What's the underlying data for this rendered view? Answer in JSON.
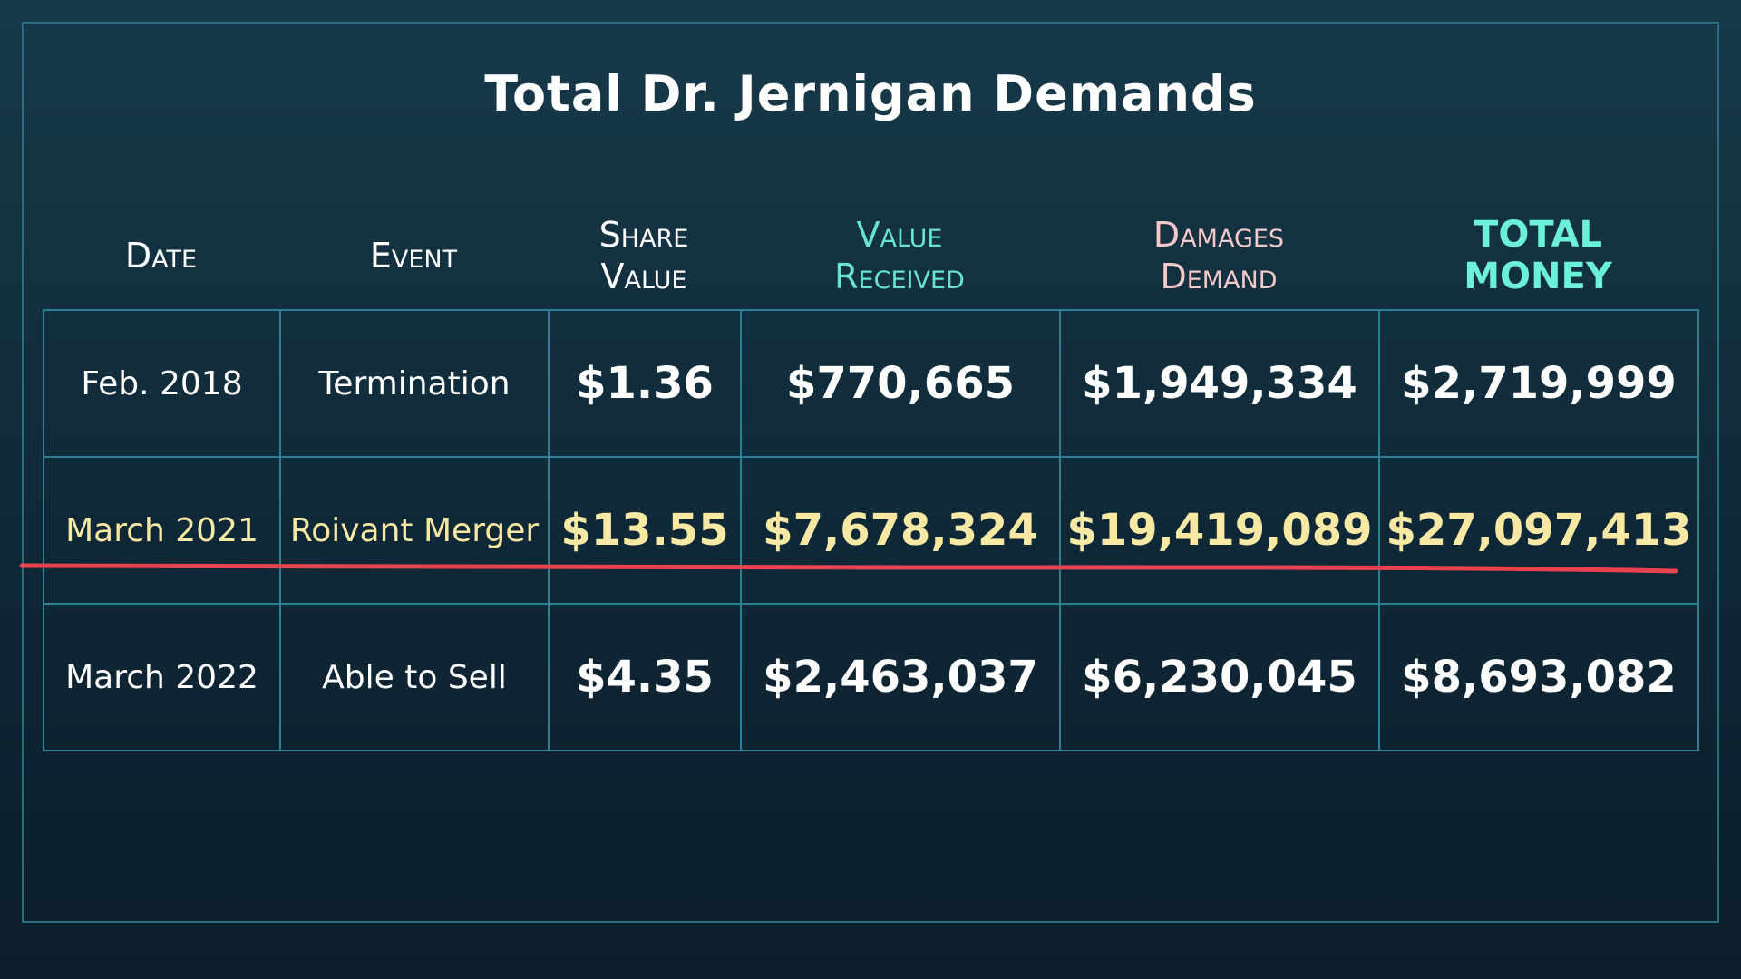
{
  "title": "Total Dr. Jernigan Demands",
  "colors": {
    "header_white": "#ffffff",
    "value_received": "#66e3d3",
    "damages_demand": "#f3c9c9",
    "total_money": "#6df0d8",
    "row_default": "#ffffff",
    "row_highlight": "#f7e8a4",
    "underline": "#e8434e",
    "border": "#2d7f91"
  },
  "headers": {
    "date": "Date",
    "event": "Event",
    "share_value": "Share\nValue",
    "value_received": "Value\nReceived",
    "damages_demand": "Damages\nDemand",
    "total_money": "TOTAL\nMONEY"
  },
  "rows": [
    {
      "date": "Feb. 2018",
      "event": "Termination",
      "share_value": "$1.36",
      "value_received": "$770,665",
      "damages_demand": "$1,949,334",
      "total_money": "$2,719,999"
    },
    {
      "date": "March 2021",
      "event": "Roivant Merger",
      "share_value": "$13.55",
      "value_received": "$7,678,324",
      "damages_demand": "$19,419,089",
      "total_money": "$27,097,413"
    },
    {
      "date": "March 2022",
      "event": "Able to Sell",
      "share_value": "$4.35",
      "value_received": "$2,463,037",
      "damages_demand": "$6,230,045",
      "total_money": "$8,693,082"
    }
  ]
}
